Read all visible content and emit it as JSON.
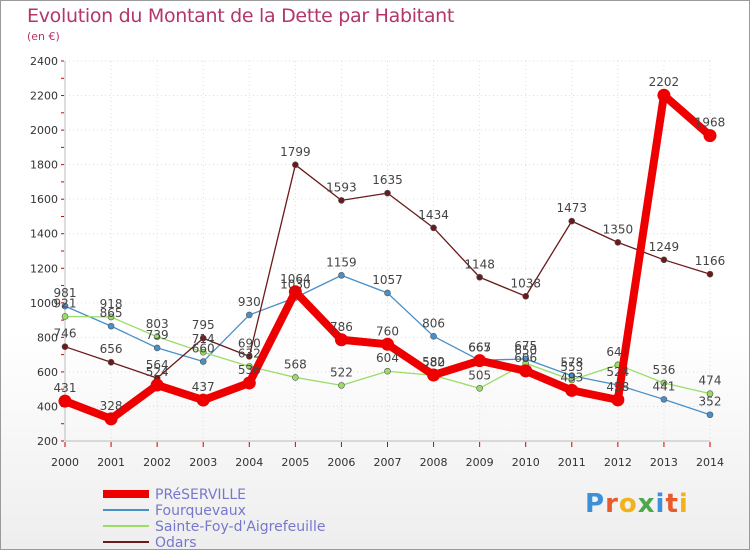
{
  "title": "Evolution du Montant de la Dette par Habitant",
  "unit_note": "(en €)",
  "logo": {
    "text": "Proxiti",
    "colors": [
      "#3d8fd8",
      "#e8592b",
      "#f2b21c",
      "#4ca84a",
      "#3d8fd8",
      "#e8592b",
      "#f2b21c"
    ]
  },
  "chart_data": {
    "type": "line",
    "title": "Evolution du Montant de la Dette par Habitant",
    "ylabel": "(en €)",
    "xlabel": "",
    "ylim": [
      200,
      2400
    ],
    "yticks": [
      200,
      400,
      600,
      800,
      1000,
      1200,
      1400,
      1600,
      1800,
      2000,
      2200,
      2400
    ],
    "x": [
      "2000",
      "2001",
      "2002",
      "2003",
      "2004",
      "2005",
      "2006",
      "2007",
      "2008",
      "2009",
      "2010",
      "2011",
      "2012",
      "2013",
      "2014"
    ],
    "grid": true,
    "legend_position": "bottom-left",
    "series": [
      {
        "name": "PRéSERVILLE",
        "color": "#ee0000",
        "emphasis": true,
        "values": [
          431,
          328,
          524,
          437,
          536,
          1064,
          786,
          760,
          582,
          665,
          606,
          493,
          438,
          2202,
          1968
        ]
      },
      {
        "name": "Fourquevaux",
        "color": "#4a90c8",
        "values": [
          981,
          865,
          739,
          660,
          930,
          1030,
          1159,
          1057,
          806,
          667,
          675,
          578,
          524,
          441,
          352
        ]
      },
      {
        "name": "Sainte-Foy-d'Aigrefeuille",
        "color": "#99dd66",
        "values": [
          921,
          918,
          803,
          714,
          632,
          568,
          522,
          604,
          580,
          505,
          650,
          553,
          641,
          536,
          474
        ]
      },
      {
        "name": "Odars",
        "color": "#6b1a1a",
        "values": [
          746,
          656,
          564,
          795,
          690,
          1799,
          1593,
          1635,
          1434,
          1148,
          1038,
          1473,
          1350,
          1249,
          1166
        ]
      }
    ]
  }
}
